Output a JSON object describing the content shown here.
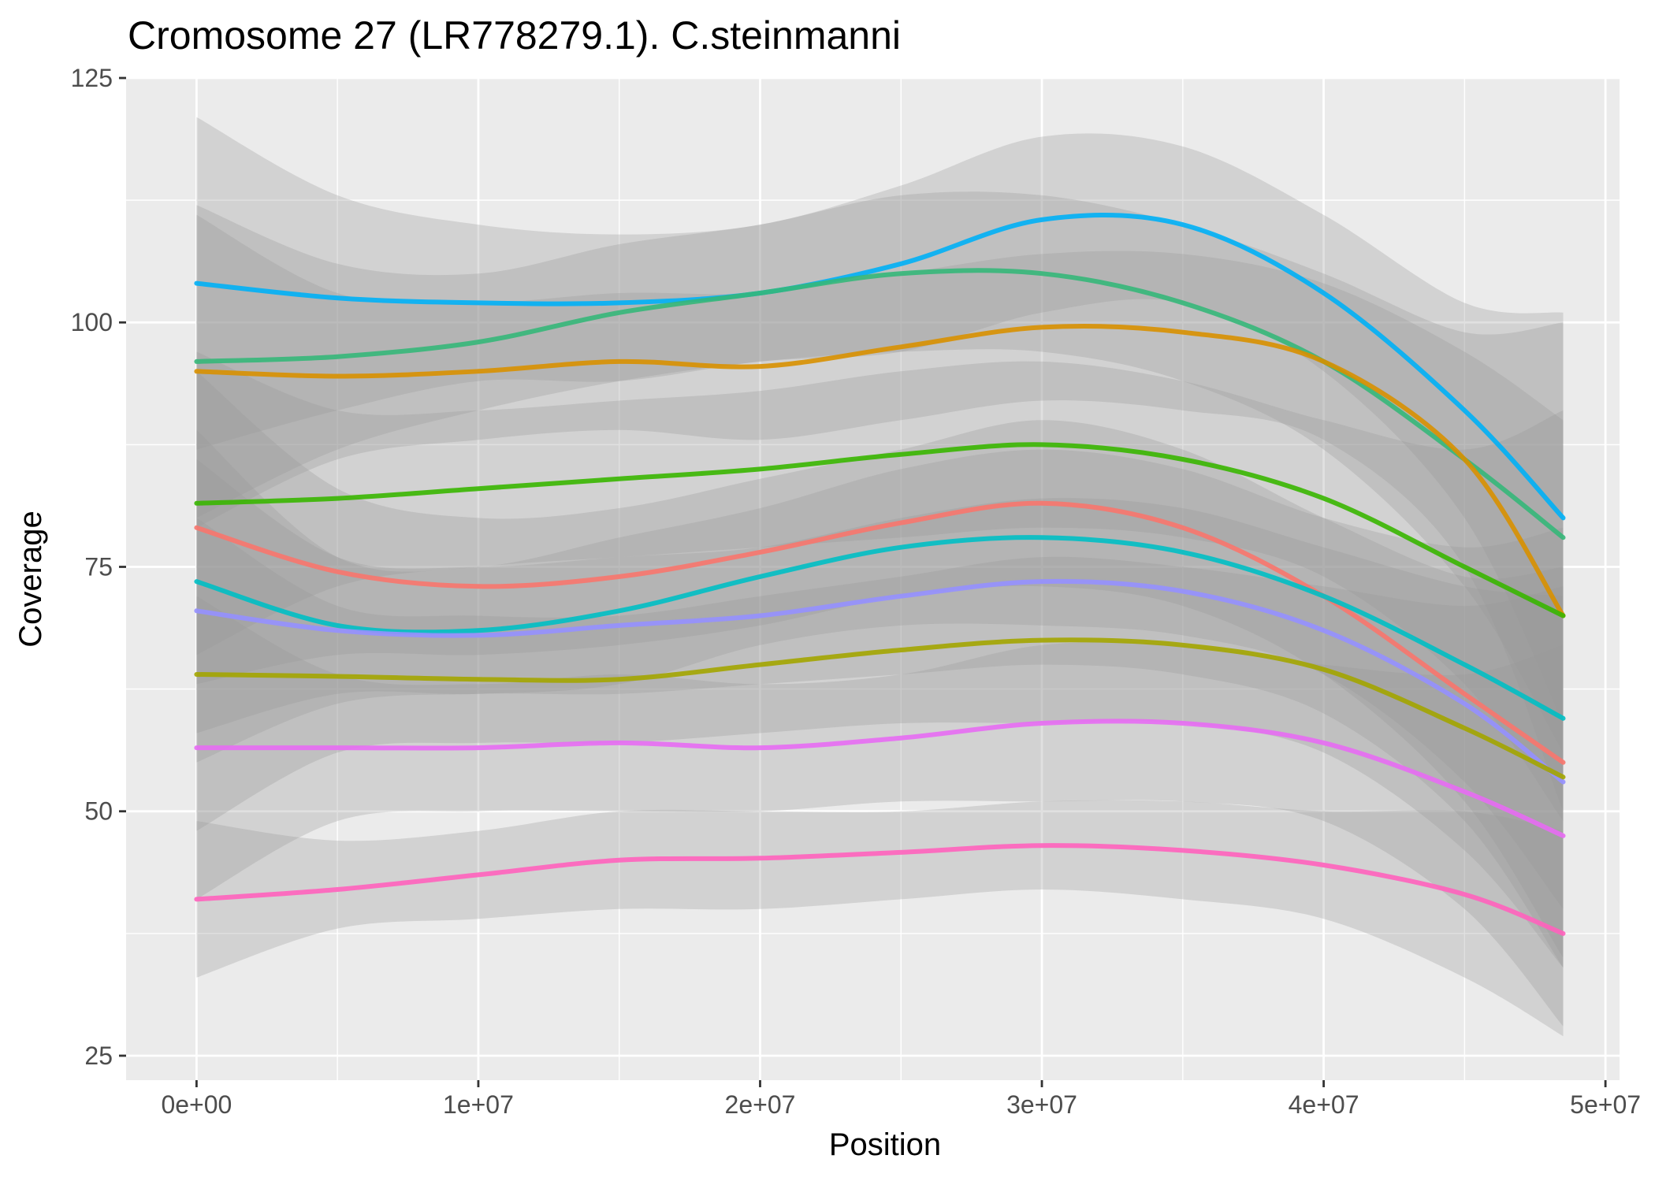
{
  "chart_data": {
    "type": "line",
    "title": "Cromosome 27 (LR778279.1). C.steinmanni",
    "xlabel": "Position",
    "ylabel": "Coverage",
    "xlim": [
      -2500000,
      50500000
    ],
    "ylim": [
      22500,
      125000
    ],
    "x_ticks": [
      {
        "value": 0,
        "label": "0e+00"
      },
      {
        "value": 10000000,
        "label": "1e+07"
      },
      {
        "value": 20000000,
        "label": "2e+07"
      },
      {
        "value": 30000000,
        "label": "3e+07"
      },
      {
        "value": 40000000,
        "label": "4e+07"
      },
      {
        "value": 50000000,
        "label": "5e+07"
      }
    ],
    "y_ticks": [
      {
        "value": 25,
        "label": "25"
      },
      {
        "value": 50,
        "label": "50"
      },
      {
        "value": 75,
        "label": "75"
      },
      {
        "value": 100,
        "label": "100"
      },
      {
        "value": 125,
        "label": "125"
      }
    ],
    "grid": true,
    "legend": "none",
    "x": [
      0,
      5000000,
      10000000,
      15000000,
      20000000,
      25000000,
      30000000,
      35000000,
      40000000,
      45000000,
      48500000
    ],
    "series": [
      {
        "color": "#00b0f6",
        "values": [
          104,
          102.5,
          102,
          102,
          103,
          106,
          110.5,
          110,
          103,
          91,
          80
        ],
        "band": [
          [
            87,
            121
          ],
          [
            91,
            113
          ],
          [
            94,
            110
          ],
          [
            94,
            109
          ],
          [
            96,
            110
          ],
          [
            97,
            114
          ],
          [
            101,
            119
          ],
          [
            102,
            118
          ],
          [
            95,
            111
          ],
          [
            80,
            102
          ],
          [
            59,
            101
          ]
        ]
      },
      {
        "color": "#35b779",
        "values": [
          96,
          96.5,
          98,
          101,
          103,
          105,
          105,
          102,
          96,
          86,
          78
        ],
        "band": [
          [
            80,
            112
          ],
          [
            87,
            106
          ],
          [
            91,
            105
          ],
          [
            94,
            108
          ],
          [
            96,
            110
          ],
          [
            97,
            113
          ],
          [
            97,
            113
          ],
          [
            94,
            110
          ],
          [
            87,
            105
          ],
          [
            73,
            99
          ],
          [
            56,
            100
          ]
        ]
      },
      {
        "color": "#d89000",
        "values": [
          95,
          94.5,
          95,
          96,
          95.5,
          97.5,
          99.5,
          99,
          96,
          86,
          70
        ],
        "band": [
          [
            79,
            111
          ],
          [
            86,
            103
          ],
          [
            88,
            102
          ],
          [
            89,
            103
          ],
          [
            88,
            103
          ],
          [
            90,
            105
          ],
          [
            92,
            107
          ],
          [
            91,
            107
          ],
          [
            88,
            104
          ],
          [
            75,
            97
          ],
          [
            50,
            90
          ]
        ]
      },
      {
        "color": "#39b600",
        "values": [
          81.5,
          82,
          83,
          84,
          85,
          86.5,
          87.5,
          86,
          82,
          75,
          70
        ],
        "band": [
          [
            66,
            97
          ],
          [
            73,
            91
          ],
          [
            75,
            91
          ],
          [
            76,
            92
          ],
          [
            77,
            93
          ],
          [
            78,
            95
          ],
          [
            79,
            96
          ],
          [
            78,
            94
          ],
          [
            74,
            90
          ],
          [
            63,
            87
          ],
          [
            49,
            91
          ]
        ]
      },
      {
        "color": "#f8766d",
        "values": [
          79,
          74.5,
          73,
          74,
          76.5,
          79.5,
          81.5,
          79,
          72,
          62,
          55
        ],
        "band": [
          [
            63,
            95
          ],
          [
            66,
            83
          ],
          [
            66,
            80
          ],
          [
            67,
            81
          ],
          [
            69,
            84
          ],
          [
            72,
            87
          ],
          [
            73,
            90
          ],
          [
            71,
            87
          ],
          [
            64,
            80
          ],
          [
            51,
            74
          ],
          [
            35,
            75
          ]
        ]
      },
      {
        "color": "#00bfc4",
        "values": [
          73.5,
          69,
          68.5,
          70.5,
          74,
          77,
          78,
          76.5,
          72,
          65,
          59.5
        ],
        "band": [
          [
            58,
            89
          ],
          [
            62,
            76
          ],
          [
            62,
            75
          ],
          [
            63,
            78
          ],
          [
            67,
            81
          ],
          [
            69,
            85
          ],
          [
            69,
            87
          ],
          [
            68,
            85
          ],
          [
            64,
            80
          ],
          [
            53,
            77
          ],
          [
            40,
            79
          ]
        ]
      },
      {
        "color": "#9590ff",
        "values": [
          70.5,
          68.5,
          68,
          69,
          70,
          72,
          73.5,
          72.5,
          68.5,
          61,
          53
        ],
        "band": [
          [
            55,
            86
          ],
          [
            61,
            76
          ],
          [
            62,
            75
          ],
          [
            62,
            76
          ],
          [
            63,
            77
          ],
          [
            64,
            80
          ],
          [
            65,
            82
          ],
          [
            64,
            81
          ],
          [
            60,
            77
          ],
          [
            49,
            73
          ],
          [
            34,
            72
          ]
        ]
      },
      {
        "color": "#a3a500",
        "values": [
          64,
          63.8,
          63.5,
          63.5,
          65,
          66.5,
          67.5,
          67,
          64.5,
          58.5,
          53.5
        ],
        "band": [
          [
            48,
            80
          ],
          [
            56,
            71
          ],
          [
            57,
            70
          ],
          [
            57,
            70
          ],
          [
            58,
            72
          ],
          [
            59,
            74
          ],
          [
            59,
            76
          ],
          [
            59,
            75
          ],
          [
            56,
            73
          ],
          [
            46,
            71
          ],
          [
            34,
            73
          ]
        ]
      },
      {
        "color": "#e76bf3",
        "values": [
          56.5,
          56.5,
          56.5,
          57,
          56.5,
          57.5,
          59,
          59,
          57,
          52,
          47.5
        ],
        "band": [
          [
            41,
            72
          ],
          [
            49,
            64
          ],
          [
            50,
            63
          ],
          [
            50,
            64
          ],
          [
            50,
            63
          ],
          [
            51,
            64
          ],
          [
            51,
            67
          ],
          [
            51,
            67
          ],
          [
            49,
            65
          ],
          [
            40,
            64
          ],
          [
            28,
            67
          ]
        ]
      },
      {
        "color": "#ff62bc",
        "values": [
          41,
          42,
          43.5,
          45,
          45.2,
          45.8,
          46.5,
          46,
          44.5,
          41.5,
          37.5
        ],
        "band": [
          [
            33,
            49
          ],
          [
            38,
            47
          ],
          [
            39,
            48
          ],
          [
            40,
            50
          ],
          [
            40,
            50
          ],
          [
            41,
            50
          ],
          [
            42,
            51
          ],
          [
            41,
            51
          ],
          [
            39,
            50
          ],
          [
            33,
            50
          ],
          [
            27,
            48
          ]
        ]
      }
    ]
  }
}
